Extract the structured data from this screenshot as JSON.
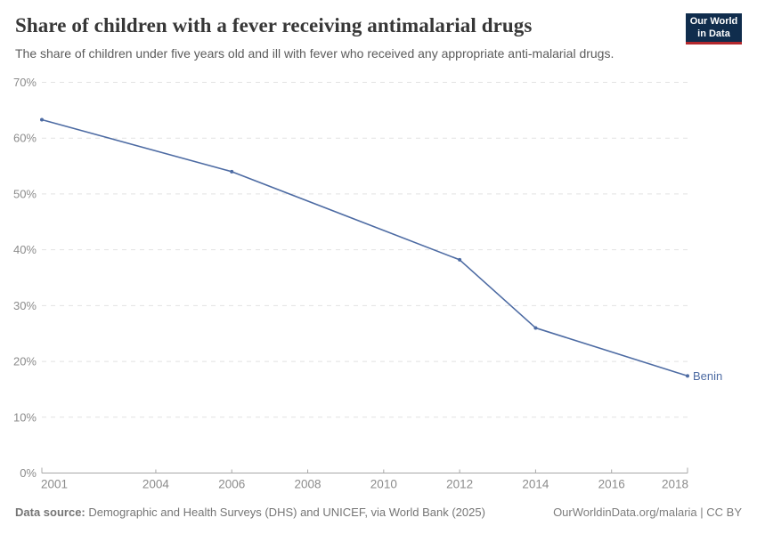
{
  "header": {
    "title": "Share of children with a fever receiving antimalarial drugs",
    "subtitle": "The share of children under five years old and ill with fever who received any appropriate anti-malarial drugs."
  },
  "logo": {
    "line1": "Our World",
    "line2": "in Data",
    "bg_color": "#102d4d",
    "accent_color": "#b3282d"
  },
  "chart_data": {
    "type": "line",
    "title": "Share of children with a fever receiving antimalarial drugs",
    "xlabel": "",
    "ylabel": "",
    "xlim": [
      2001,
      2018
    ],
    "ylim": [
      0,
      70
    ],
    "grid": true,
    "x_ticks": [
      2001,
      2004,
      2006,
      2008,
      2010,
      2012,
      2014,
      2016,
      2018
    ],
    "y_ticks": [
      0,
      10,
      20,
      30,
      40,
      50,
      60,
      70
    ],
    "y_tick_suffix": "%",
    "legend_position": "end-of-line-label",
    "series": [
      {
        "name": "Benin",
        "color": "#4d6ba3",
        "x": [
          2001,
          2006,
          2012,
          2014,
          2018
        ],
        "values": [
          63.3,
          54.0,
          38.2,
          26.0,
          17.4
        ]
      }
    ],
    "colors": {
      "gridline": "#e2e2e2",
      "axis": "#a8a8a8",
      "tick_label": "#8c8c8c"
    }
  },
  "footer": {
    "source_label": "Data source:",
    "source_text": " Demographic and Health Surveys (DHS) and UNICEF, via World Bank (2025)",
    "attribution": "OurWorldinData.org/malaria | CC BY"
  }
}
